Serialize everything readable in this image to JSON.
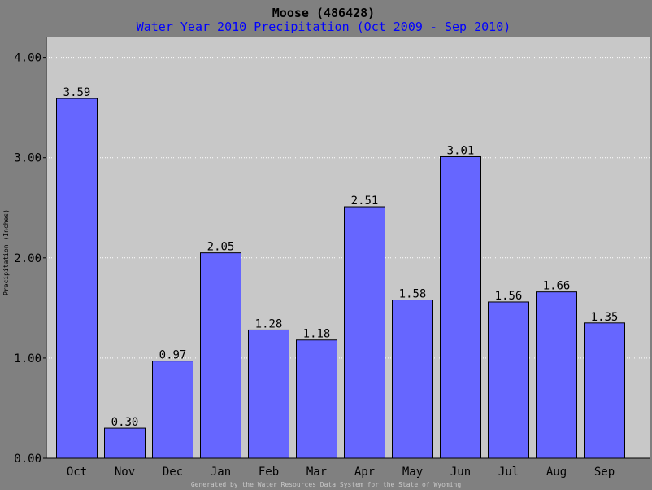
{
  "chart_data": {
    "type": "bar",
    "title": "Moose (486428)",
    "subtitle": "Water Year 2010 Precipitation (Oct 2009 - Sep 2010)",
    "ylabel": "Precipitation (Inches)",
    "xlabel": "",
    "footer": "Generated by the Water Resources Data System for the State of Wyoming",
    "categories": [
      "Oct",
      "Nov",
      "Dec",
      "Jan",
      "Feb",
      "Mar",
      "Apr",
      "May",
      "Jun",
      "Jul",
      "Aug",
      "Sep"
    ],
    "values": [
      3.59,
      0.3,
      0.97,
      2.05,
      1.28,
      1.18,
      2.51,
      1.58,
      3.01,
      1.56,
      1.66,
      1.35
    ],
    "value_labels": [
      "3.59",
      "0.30",
      "0.97",
      "2.05",
      "1.28",
      "1.18",
      "2.51",
      "1.58",
      "3.01",
      "1.56",
      "1.66",
      "1.35"
    ],
    "ylim": [
      0,
      4.2
    ],
    "yticks": [
      0,
      1,
      2,
      3,
      4
    ],
    "ytick_labels": [
      "0.00",
      "1.00",
      "2.00",
      "3.00",
      "4.00"
    ],
    "grid": "horizontal dotted",
    "legend": "none",
    "colors": {
      "bar_fill": "#6666ff",
      "plot_bg": "#c8c8c8",
      "page_bg": "#808080",
      "title": "#000000",
      "subtitle": "#0000ff",
      "grid": "#ffffff",
      "footer": "#c8c8c8"
    }
  }
}
